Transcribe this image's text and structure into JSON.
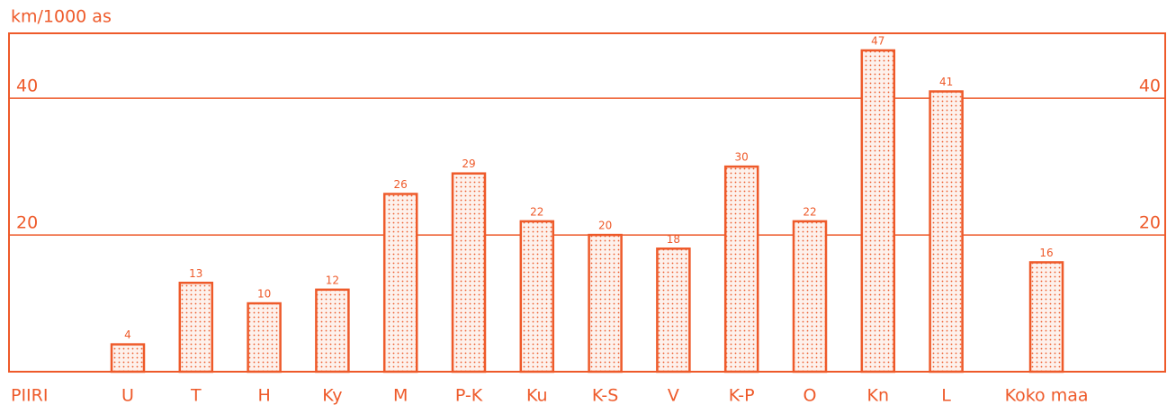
{
  "chart_data": {
    "type": "bar",
    "title": "km/1000 as",
    "x_label": "PIIRI",
    "categories": [
      "U",
      "T",
      "H",
      "Ky",
      "M",
      "P-K",
      "Ku",
      "K-S",
      "V",
      "K-P",
      "O",
      "Kn",
      "L",
      "Koko maa"
    ],
    "values": [
      4,
      13,
      10,
      12,
      26,
      29,
      22,
      20,
      18,
      30,
      22,
      47,
      41,
      16
    ],
    "color": "#ee5a2a",
    "ylim": [
      0,
      49.5
    ],
    "yticks": [
      20,
      40
    ],
    "grid": true
  }
}
